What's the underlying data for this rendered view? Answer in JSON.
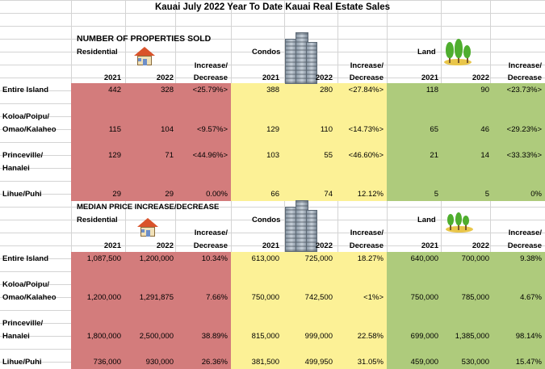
{
  "title": "Kauai July 2022 Year To Date Kauai Real Estate Sales",
  "colors": {
    "residential": "#d37c7c",
    "condos": "#fcf196",
    "land": "#aecb7c",
    "grid": "#d4d4d4"
  },
  "sold": {
    "heading": "NUMBER OF PROPERTIES SOLD",
    "cat_residential": "Residential",
    "cat_condos": "Condos",
    "cat_land": "Land",
    "incr1": "Increase/",
    "decr": "Decrease",
    "y2021": "2021",
    "y2022": "2022",
    "icons": [
      "house-icon",
      "building-icon",
      "trees-icon"
    ],
    "rows": [
      {
        "l1": "Entire Island",
        "l2": "",
        "res": [
          "442",
          "328",
          "<25.79%>"
        ],
        "con": [
          "388",
          "280",
          "<27.84%>"
        ],
        "land": [
          "118",
          "90",
          "<23.73%>"
        ]
      },
      {
        "l1": "Koloa/Poipu/",
        "l2": "Omao/Kalaheo",
        "res": [
          "115",
          "104",
          "<9.57%>"
        ],
        "con": [
          "129",
          "110",
          "<14.73%>"
        ],
        "land": [
          "65",
          "46",
          "<29.23%>"
        ]
      },
      {
        "l1": "Princeville/",
        "l2": "Hanalei",
        "res": [
          "129",
          "71",
          "<44.96%>"
        ],
        "con": [
          "103",
          "55",
          "<46.60%>"
        ],
        "land": [
          "21",
          "14",
          "<33.33%>"
        ]
      },
      {
        "l1": "Lihue/Puhi",
        "l2": "",
        "res": [
          "29",
          "29",
          "0.00%"
        ],
        "con": [
          "66",
          "74",
          "12.12%"
        ],
        "land": [
          "5",
          "5",
          "0%"
        ]
      }
    ]
  },
  "median": {
    "heading": "MEDIAN PRICE INCREASE/DECREASE",
    "cat_residential": "Residential",
    "cat_condos": "Condos",
    "cat_land": "Land",
    "incr1": "Increase/",
    "decr": "Decrease",
    "y2021": "2021",
    "y2022": "2022",
    "rows": [
      {
        "l1": "Entire Island",
        "l2": "",
        "res": [
          "1,087,500",
          "1,200,000",
          "10.34%"
        ],
        "con": [
          "613,000",
          "725,000",
          "18.27%"
        ],
        "land": [
          "640,000",
          "700,000",
          "9.38%"
        ]
      },
      {
        "l1": "Koloa/Poipu/",
        "l2": "Omao/Kalaheo",
        "res": [
          "1,200,000",
          "1,291,875",
          "7.66%"
        ],
        "con": [
          "750,000",
          "742,500",
          "<1%>"
        ],
        "land": [
          "750,000",
          "785,000",
          "4.67%"
        ]
      },
      {
        "l1": "Princeville/",
        "l2": "Hanalei",
        "res": [
          "1,800,000",
          "2,500,000",
          "38.89%"
        ],
        "con": [
          "815,000",
          "999,000",
          "22.58%"
        ],
        "land": [
          "699,000",
          "1,385,000",
          "98.14%"
        ]
      },
      {
        "l1": "Lihue/Puhi",
        "l2": "",
        "res": [
          "736,000",
          "930,000",
          "26.36%"
        ],
        "con": [
          "381,500",
          "499,950",
          "31.05%"
        ],
        "land": [
          "459,000",
          "530,000",
          "15.47%"
        ]
      }
    ]
  }
}
